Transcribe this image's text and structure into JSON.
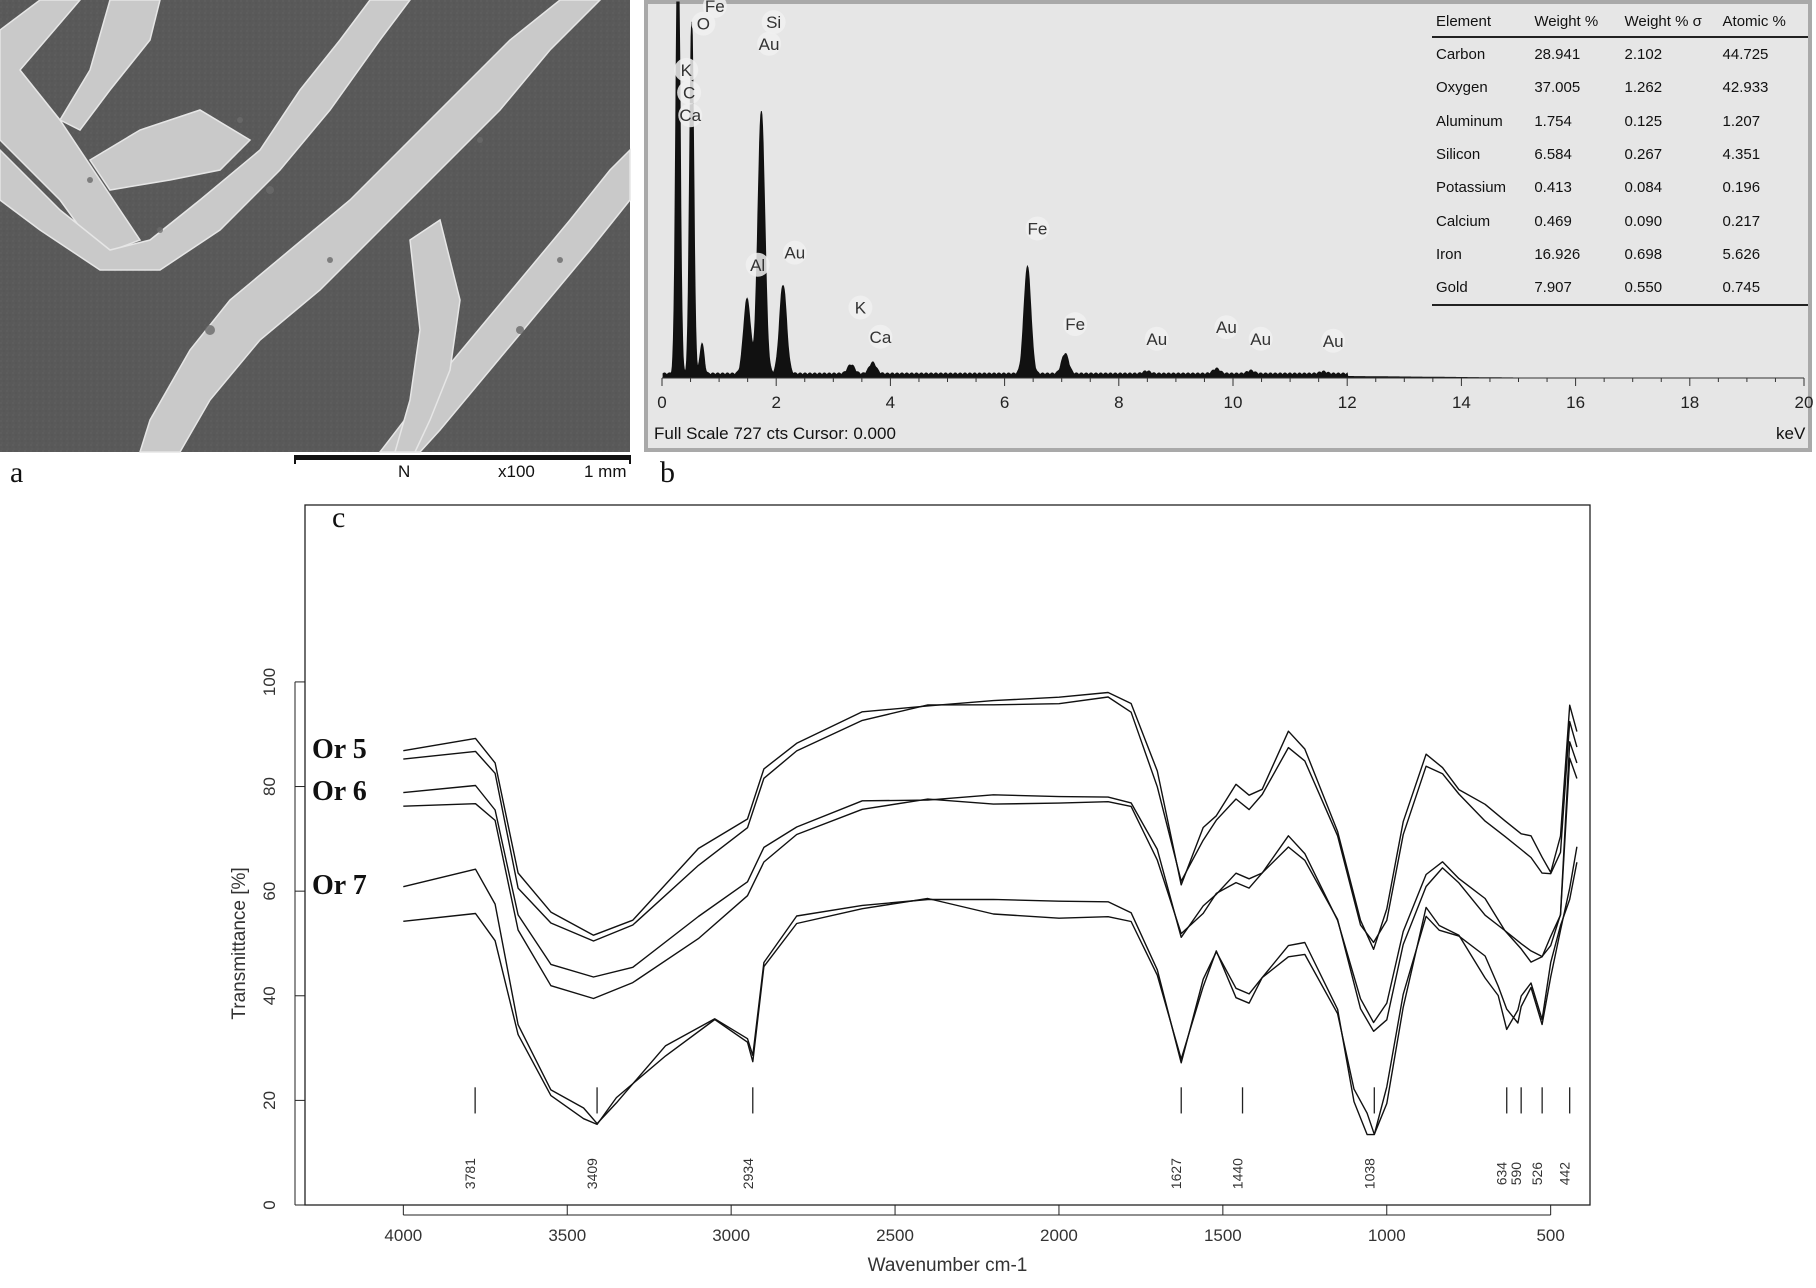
{
  "panel_a": {
    "letter": "a",
    "scale_bar": {
      "detector": "N",
      "magnification": "x100",
      "length": "1 mm"
    }
  },
  "panel_b": {
    "letter": "b",
    "footer_left": "Full Scale 727 cts Cursor: 0.000",
    "footer_right": "keV",
    "table": {
      "headers": [
        "Element",
        "Weight %",
        "Weight % σ",
        "Atomic %"
      ],
      "rows": [
        [
          "Carbon",
          "28.941",
          "2.102",
          "44.725"
        ],
        [
          "Oxygen",
          "37.005",
          "1.262",
          "42.933"
        ],
        [
          "Aluminum",
          "1.754",
          "0.125",
          "1.207"
        ],
        [
          "Silicon",
          "6.584",
          "0.267",
          "4.351"
        ],
        [
          "Potassium",
          "0.413",
          "0.084",
          "0.196"
        ],
        [
          "Calcium",
          "0.469",
          "0.090",
          "0.217"
        ],
        [
          "Iron",
          "16.926",
          "0.698",
          "5.626"
        ],
        [
          "Gold",
          "7.907",
          "0.550",
          "0.745"
        ]
      ]
    }
  },
  "panel_c": {
    "letter": "c"
  },
  "chart_data": [
    {
      "type": "line",
      "title": "",
      "xlabel": "",
      "x_unit": "keV",
      "xlim": [
        0,
        20
      ],
      "x_ticks": [
        0,
        2,
        4,
        6,
        8,
        10,
        12,
        14,
        16,
        18,
        20
      ],
      "ylim": [
        0,
        727
      ],
      "full_scale_counts": 727,
      "peaks": [
        {
          "label": "C",
          "kev": 0.28,
          "counts": 920
        },
        {
          "label": "O",
          "kev": 0.52,
          "counts": 700
        },
        {
          "label": "Fe",
          "kev": 0.7,
          "counts": 60
        },
        {
          "label": "Al",
          "kev": 1.49,
          "counts": 148
        },
        {
          "label": "Si",
          "kev": 1.74,
          "counts": 520
        },
        {
          "label": "Au",
          "kev": 2.12,
          "counts": 177
        },
        {
          "label": "K",
          "kev": 3.31,
          "counts": 18
        },
        {
          "label": "Ca",
          "kev": 3.69,
          "counts": 22
        },
        {
          "label": "Fe",
          "kev": 6.4,
          "counts": 212
        },
        {
          "label": "Fe",
          "kev": 7.06,
          "counts": 40
        },
        {
          "label": "Au",
          "kev": 8.49,
          "counts": 5
        },
        {
          "label": "Au",
          "kev": 9.71,
          "counts": 10
        },
        {
          "label": "Au",
          "kev": 10.31,
          "counts": 6
        },
        {
          "label": "Au",
          "kev": 11.58,
          "counts": 4
        }
      ],
      "peak_labels": [
        {
          "text": "Fe",
          "kev": 0.75,
          "counts": 727
        },
        {
          "text": "O",
          "kev": 0.55,
          "counts": 692
        },
        {
          "text": "K",
          "kev": 0.25,
          "counts": 600
        },
        {
          "text": "C",
          "kev": 0.3,
          "counts": 555
        },
        {
          "text": "Ca",
          "kev": 0.32,
          "counts": 510
        },
        {
          "text": "Si",
          "kev": 1.78,
          "counts": 695
        },
        {
          "text": "Au",
          "kev": 1.7,
          "counts": 652
        },
        {
          "text": "Al",
          "kev": 1.5,
          "counts": 213
        },
        {
          "text": "Au",
          "kev": 2.15,
          "counts": 237
        },
        {
          "text": "K",
          "kev": 3.3,
          "counts": 128
        },
        {
          "text": "Ca",
          "kev": 3.65,
          "counts": 70
        },
        {
          "text": "Fe",
          "kev": 6.4,
          "counts": 285
        },
        {
          "text": "Fe",
          "kev": 7.06,
          "counts": 95
        },
        {
          "text": "Au",
          "kev": 8.49,
          "counts": 66
        },
        {
          "text": "Au",
          "kev": 9.71,
          "counts": 89
        },
        {
          "text": "Au",
          "kev": 10.31,
          "counts": 66
        },
        {
          "text": "Au",
          "kev": 11.58,
          "counts": 62
        }
      ]
    },
    {
      "type": "line",
      "title": "",
      "xlabel": "Wavenumber cm-1",
      "ylabel": "Transmittance [%]",
      "xlim": [
        4300,
        380
      ],
      "ylim": [
        0,
        130
      ],
      "x_ticks": [
        4000,
        3500,
        3000,
        2500,
        2000,
        1500,
        1000,
        500
      ],
      "y_ticks": [
        0,
        20,
        40,
        60,
        80,
        100
      ],
      "band_markers": [
        "3781",
        "3409",
        "2934",
        "1627",
        "1440",
        "1038",
        "634",
        "590",
        "526",
        "442"
      ],
      "series": [
        {
          "name": "Or 5",
          "curves": [
            {
              "x": [
                4000,
                3780,
                3720,
                3650,
                3550,
                3420,
                3300,
                3100,
                2950,
                2900,
                2800,
                2600,
                2400,
                2200,
                2000,
                1850,
                1780,
                1700,
                1627,
                1560,
                1520,
                1460,
                1420,
                1380,
                1300,
                1250,
                1150,
                1080,
                1040,
                1000,
                950,
                880,
                830,
                780,
                700,
                640,
                590,
                560,
                526,
                500,
                470,
                442,
                420
              ],
              "y": [
                87,
                89,
                85,
                64,
                56,
                52,
                55,
                68,
                74,
                83,
                88,
                94,
                96,
                96,
                97,
                98,
                96,
                83,
                61,
                72,
                75,
                80,
                78,
                80,
                90,
                87,
                72,
                55,
                49,
                56,
                73,
                86,
                84,
                80,
                76,
                74,
                71,
                70,
                66,
                64,
                70,
                95,
                90
              ]
            },
            {
              "x": [
                4000,
                3780,
                3720,
                3650,
                3550,
                3420,
                3300,
                3100,
                2950,
                2900,
                2800,
                2600,
                2400,
                2200,
                2000,
                1850,
                1780,
                1700,
                1627,
                1560,
                1520,
                1460,
                1420,
                1380,
                1300,
                1250,
                1150,
                1080,
                1040,
                1000,
                950,
                880,
                830,
                780,
                700,
                640,
                590,
                560,
                526,
                500,
                470,
                442,
                420
              ],
              "y": [
                85,
                87,
                82,
                60,
                54,
                50,
                53,
                65,
                72,
                82,
                87,
                93,
                95,
                96,
                96,
                97,
                94,
                80,
                62,
                70,
                73,
                78,
                76,
                78,
                88,
                85,
                70,
                53,
                50,
                55,
                71,
                84,
                82,
                78,
                74,
                70,
                68,
                67,
                64,
                63,
                68,
                93,
                88
              ]
            }
          ]
        },
        {
          "name": "Or 6",
          "curves": [
            {
              "x": [
                4000,
                3780,
                3720,
                3650,
                3550,
                3420,
                3300,
                3100,
                2950,
                2900,
                2800,
                2600,
                2400,
                2200,
                2000,
                1850,
                1780,
                1700,
                1627,
                1560,
                1520,
                1460,
                1420,
                1380,
                1300,
                1250,
                1150,
                1080,
                1040,
                1000,
                950,
                880,
                830,
                780,
                700,
                640,
                590,
                560,
                526,
                500,
                470,
                442,
                420
              ],
              "y": [
                79,
                80,
                76,
                56,
                46,
                44,
                46,
                55,
                62,
                68,
                72,
                77,
                78,
                78,
                78,
                78,
                77,
                68,
                51,
                57,
                60,
                63,
                62,
                64,
                70,
                67,
                55,
                40,
                35,
                38,
                52,
                63,
                66,
                63,
                58,
                53,
                50,
                48,
                47,
                50,
                55,
                88,
                84
              ]
            },
            {
              "x": [
                4000,
                3780,
                3720,
                3650,
                3550,
                3420,
                3300,
                3100,
                2950,
                2900,
                2800,
                2600,
                2400,
                2200,
                2000,
                1850,
                1780,
                1700,
                1627,
                1560,
                1520,
                1460,
                1420,
                1380,
                1300,
                1250,
                1150,
                1080,
                1040,
                1000,
                950,
                880,
                830,
                780,
                700,
                640,
                590,
                560,
                526,
                500,
                470,
                442,
                420
              ],
              "y": [
                76,
                77,
                73,
                52,
                42,
                39,
                42,
                51,
                59,
                66,
                71,
                76,
                77,
                77,
                77,
                77,
                76,
                66,
                52,
                56,
                59,
                62,
                61,
                63,
                69,
                66,
                54,
                37,
                33,
                36,
                50,
                61,
                64,
                61,
                56,
                52,
                49,
                47,
                48,
                51,
                56,
                86,
                82
              ]
            }
          ]
        },
        {
          "name": "Or 7",
          "curves": [
            {
              "x": [
                4000,
                3780,
                3720,
                3650,
                3550,
                3450,
                3409,
                3350,
                3200,
                3050,
                2950,
                2934,
                2900,
                2800,
                2600,
                2400,
                2200,
                2000,
                1850,
                1780,
                1700,
                1627,
                1560,
                1520,
                1460,
                1420,
                1380,
                1300,
                1250,
                1150,
                1100,
                1060,
                1038,
                1000,
                950,
                880,
                840,
                780,
                700,
                660,
                634,
                600,
                590,
                560,
                526,
                500,
                470,
                442,
                420
              ],
              "y": [
                61,
                64,
                58,
                35,
                22,
                18,
                15,
                20,
                30,
                36,
                32,
                28,
                46,
                55,
                57,
                59,
                58,
                58,
                58,
                56,
                45,
                27,
                43,
                49,
                41,
                40,
                44,
                49,
                50,
                38,
                20,
                14,
                14,
                22,
                40,
                55,
                52,
                52,
                47,
                42,
                38,
                35,
                38,
                41,
                34,
                44,
                52,
                60,
                68
              ]
            },
            {
              "x": [
                4000,
                3780,
                3720,
                3650,
                3550,
                3450,
                3409,
                3350,
                3200,
                3050,
                2950,
                2934,
                2900,
                2800,
                2600,
                2400,
                2200,
                2000,
                1850,
                1780,
                1700,
                1627,
                1560,
                1520,
                1460,
                1420,
                1380,
                1300,
                1250,
                1150,
                1100,
                1060,
                1038,
                1000,
                950,
                880,
                840,
                780,
                700,
                660,
                634,
                600,
                590,
                560,
                526,
                500,
                470,
                442,
                420
              ],
              "y": [
                54,
                56,
                50,
                32,
                21,
                17,
                16,
                20,
                29,
                35,
                31,
                28,
                46,
                54,
                57,
                58,
                56,
                55,
                55,
                54,
                44,
                28,
                42,
                48,
                40,
                39,
                43,
                48,
                48,
                36,
                22,
                17,
                13,
                20,
                38,
                57,
                54,
                51,
                44,
                40,
                33,
                37,
                40,
                43,
                36,
                46,
                54,
                59,
                66
              ]
            }
          ]
        }
      ]
    }
  ]
}
